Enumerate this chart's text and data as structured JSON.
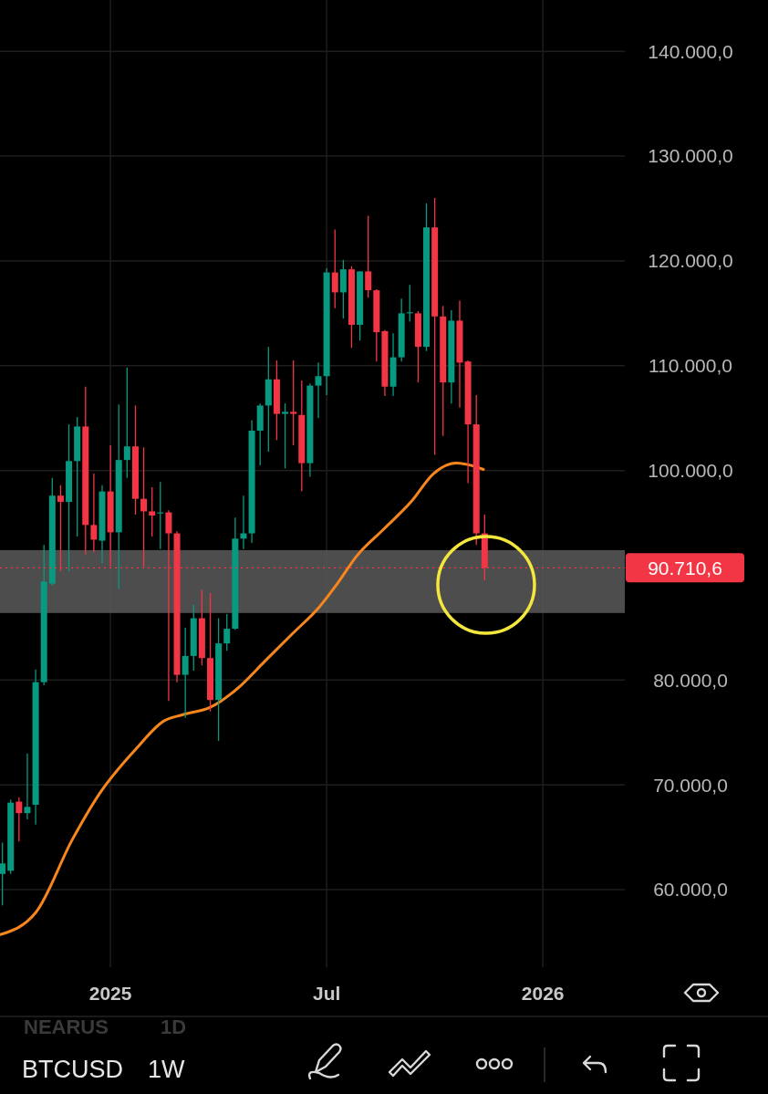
{
  "chart_data": {
    "type": "candlestick",
    "x": [
      "2024-10-07",
      "2024-10-14",
      "2024-10-21",
      "2024-10-28",
      "2024-11-04",
      "2024-11-11",
      "2024-11-18",
      "2024-11-25",
      "2024-12-02",
      "2024-12-09",
      "2024-12-16",
      "2024-12-23",
      "2024-12-30",
      "2025-01-06",
      "2025-01-13",
      "2025-01-20",
      "2025-01-27",
      "2025-02-03",
      "2025-02-10",
      "2025-02-17",
      "2025-02-24",
      "2025-03-03",
      "2025-03-10",
      "2025-03-17",
      "2025-03-24",
      "2025-03-31",
      "2025-04-07",
      "2025-04-14",
      "2025-04-21",
      "2025-04-28",
      "2025-05-05",
      "2025-05-12",
      "2025-05-19",
      "2025-05-26",
      "2025-06-02",
      "2025-06-09",
      "2025-06-16",
      "2025-06-23",
      "2025-06-30",
      "2025-07-07",
      "2025-07-14",
      "2025-07-21",
      "2025-07-28",
      "2025-08-04",
      "2025-08-11",
      "2025-08-18",
      "2025-08-25",
      "2025-09-01",
      "2025-09-08",
      "2025-09-15",
      "2025-09-22",
      "2025-09-29",
      "2025-10-06",
      "2025-10-13",
      "2025-10-20",
      "2025-10-27",
      "2025-11-03",
      "2025-11-10",
      "2025-11-17"
    ],
    "ohlc": [
      [
        61500,
        64500,
        58500,
        62500
      ],
      [
        61800,
        68600,
        61500,
        68300
      ],
      [
        68400,
        68800,
        64600,
        67300
      ],
      [
        67300,
        73000,
        66700,
        67900
      ],
      [
        68100,
        81000,
        66200,
        79800
      ],
      [
        79800,
        92900,
        79500,
        89400
      ],
      [
        89200,
        99300,
        89000,
        97600
      ],
      [
        97600,
        98600,
        90400,
        97000
      ],
      [
        97000,
        104400,
        90400,
        100900
      ],
      [
        100900,
        105100,
        93700,
        104200
      ],
      [
        104200,
        108000,
        92000,
        94800
      ],
      [
        94800,
        99700,
        92200,
        93400
      ],
      [
        93300,
        98600,
        91100,
        98000
      ],
      [
        98000,
        102400,
        90800,
        94100
      ],
      [
        94100,
        106300,
        88700,
        101000
      ],
      [
        101000,
        109800,
        99300,
        102300
      ],
      [
        102300,
        106200,
        95800,
        97300
      ],
      [
        97300,
        102200,
        90800,
        96100
      ],
      [
        96100,
        98400,
        93700,
        95700
      ],
      [
        95900,
        98900,
        92500,
        96000
      ],
      [
        96000,
        96200,
        78000,
        94000
      ],
      [
        94000,
        94200,
        79800,
        80500
      ],
      [
        80500,
        85000,
        76400,
        82300
      ],
      [
        82300,
        87200,
        80900,
        85900
      ],
      [
        85900,
        88600,
        81400,
        82100
      ],
      [
        82100,
        88300,
        77000,
        78100
      ],
      [
        78100,
        85900,
        74200,
        83500
      ],
      [
        83500,
        86300,
        82800,
        84900
      ],
      [
        84900,
        95500,
        84800,
        93500
      ],
      [
        93500,
        97600,
        92500,
        94000
      ],
      [
        94000,
        104800,
        93100,
        103800
      ],
      [
        103800,
        106400,
        100500,
        106200
      ],
      [
        106200,
        111800,
        101800,
        108700
      ],
      [
        108700,
        110500,
        102900,
        105400
      ],
      [
        105400,
        106400,
        100200,
        105600
      ],
      [
        105600,
        110500,
        102400,
        105400
      ],
      [
        105300,
        108600,
        98000,
        100700
      ],
      [
        100700,
        108300,
        99400,
        108100
      ],
      [
        108100,
        110300,
        105000,
        109000
      ],
      [
        109000,
        119300,
        107200,
        118900
      ],
      [
        118900,
        123000,
        115500,
        117000
      ],
      [
        117000,
        120100,
        114500,
        119200
      ],
      [
        119200,
        119500,
        111700,
        113900
      ],
      [
        113900,
        119000,
        112400,
        119000
      ],
      [
        119000,
        124300,
        116500,
        117200
      ],
      [
        117200,
        117300,
        110400,
        113200
      ],
      [
        113300,
        113400,
        107100,
        108000
      ],
      [
        108000,
        113100,
        107100,
        110800
      ],
      [
        110800,
        116400,
        110400,
        115000
      ],
      [
        115000,
        117700,
        114200,
        115100
      ],
      [
        115000,
        115200,
        108400,
        111800
      ],
      [
        111800,
        125500,
        111400,
        123200
      ],
      [
        123200,
        126000,
        101500,
        114700
      ],
      [
        114700,
        115700,
        103300,
        108400
      ],
      [
        108400,
        115300,
        106400,
        114300
      ],
      [
        114300,
        116200,
        106000,
        110300
      ],
      [
        110400,
        110500,
        98800,
        104400
      ],
      [
        104400,
        107200,
        92900,
        94000
      ],
      [
        94000,
        95800,
        89500,
        90710.6
      ]
    ],
    "colors": [
      "#089981",
      "#089981",
      "#f23645",
      "#089981",
      "#089981",
      "#089981",
      "#089981",
      "#f23645",
      "#089981",
      "#089981",
      "#f23645",
      "#f23645",
      "#089981",
      "#f23645",
      "#089981",
      "#089981",
      "#f23645",
      "#f23645",
      "#f23645",
      "#089981",
      "#f23645",
      "#f23645",
      "#089981",
      "#089981",
      "#f23645",
      "#f23645",
      "#089981",
      "#089981",
      "#089981",
      "#089981",
      "#089981",
      "#089981",
      "#089981",
      "#f23645",
      "#089981",
      "#f23645",
      "#f23645",
      "#089981",
      "#089981",
      "#089981",
      "#f23645",
      "#089981",
      "#f23645",
      "#089981",
      "#f23645",
      "#f23645",
      "#f23645",
      "#089981",
      "#089981",
      "#089981",
      "#f23645",
      "#089981",
      "#f23645",
      "#f23645",
      "#089981",
      "#f23645",
      "#f23645",
      "#f23645",
      "#f23645"
    ],
    "series": [
      {
        "type": "line",
        "color": "#f7861c",
        "x": [
          "2024-10-05",
          "2024-11-04",
          "2024-12-05",
          "2024-12-28",
          "2025-01-28",
          "2025-02-20",
          "2025-03-08",
          "2025-03-31",
          "2025-04-23",
          "2025-05-16",
          "2025-06-08",
          "2025-07-01",
          "2025-07-16",
          "2025-08-01",
          "2025-08-24",
          "2025-09-16",
          "2025-10-05",
          "2025-10-24",
          "2025-11-05",
          "2025-11-16"
        ],
        "values": [
          55700,
          57800,
          64800,
          69200,
          73500,
          76100,
          76700,
          77400,
          79200,
          81800,
          84400,
          87000,
          89200,
          91800,
          94400,
          97000,
          99700,
          100700,
          100500,
          100100
        ]
      }
    ],
    "xlim": [
      "2024-10-05",
      "2026-03-15"
    ],
    "xticks": [
      {
        "value": "2025-01-06",
        "label": "2025"
      },
      {
        "value": "2025-07-07",
        "label": "Jul"
      },
      {
        "value": "2026-01-05",
        "label": "2026"
      }
    ],
    "ylim": [
      52600,
      144900
    ],
    "yticks": [
      {
        "value": 60000,
        "label": "60.000,0"
      },
      {
        "value": 70000,
        "label": "70.000,0"
      },
      {
        "value": 80000,
        "label": "80.000,0"
      },
      {
        "value": 100000,
        "label": "100.000,0"
      },
      {
        "value": 110000,
        "label": "110.000,0"
      },
      {
        "value": 120000,
        "label": "120.000,0"
      },
      {
        "value": 130000,
        "label": "130.000,0"
      },
      {
        "value": 140000,
        "label": "140.000,0"
      }
    ],
    "grid": true,
    "ref_lines": [
      {
        "axis": "y",
        "value": 90710.6,
        "label": "90.710,6",
        "color": "#f23645",
        "line_style": "dotted"
      }
    ],
    "bands": [
      {
        "axis": "y",
        "from": 86400,
        "to": 92400,
        "color": "#5a5a5a"
      }
    ],
    "annotations": [
      "NEARUS",
      "1D",
      "BTCUSD",
      "1W"
    ]
  }
}
